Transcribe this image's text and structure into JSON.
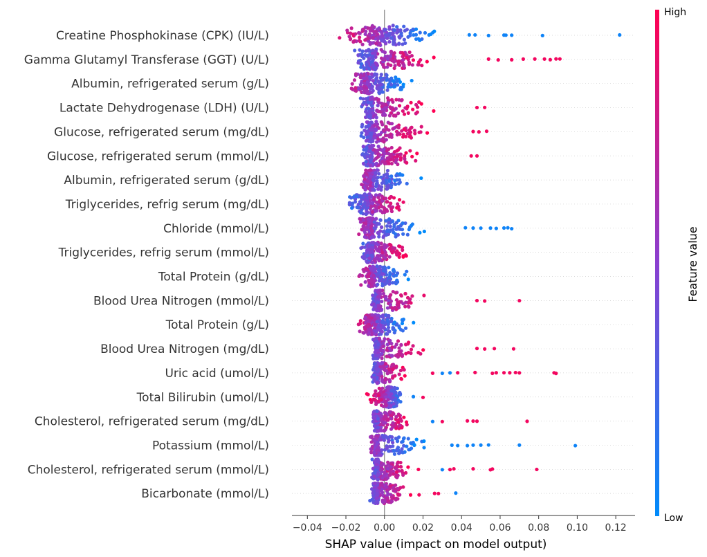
{
  "chart_data": {
    "type": "scatter",
    "subtype": "shap-beeswarm-summary",
    "title": "",
    "xlabel": "SHAP value (impact on model output)",
    "ylabel": "",
    "xlim": [
      -0.048,
      0.13
    ],
    "x_ticks": [
      -0.04,
      -0.02,
      0.0,
      0.02,
      0.04,
      0.06,
      0.08,
      0.1,
      0.12
    ],
    "x_tick_labels": [
      "−0.04",
      "−0.02",
      "0.00",
      "0.02",
      "0.04",
      "0.06",
      "0.08",
      "0.10",
      "0.12"
    ],
    "colorbar": {
      "title": "Feature value",
      "high_label": "High",
      "low_label": "Low",
      "low_color": "#008bfb",
      "mid_color": "#8a3fd0",
      "high_color": "#ff0052"
    },
    "features": [
      {
        "name": "Creatine Phosphokinase (CPK) (IU/L)",
        "min": -0.04,
        "max": 0.122,
        "center": -0.002,
        "spread_neg": 0.036,
        "spread_pos": 0.045,
        "high_side": "neg",
        "outliers": [
          [
            0.122,
            "low"
          ],
          [
            0.082,
            "low"
          ],
          [
            0.066,
            "low"
          ],
          [
            0.063,
            "low"
          ],
          [
            0.062,
            "low"
          ],
          [
            0.054,
            "low"
          ],
          [
            0.047,
            "low"
          ],
          [
            0.044,
            "low"
          ]
        ]
      },
      {
        "name": "Gamma Glutamyl Transferase (GGT) (U/L)",
        "min": -0.025,
        "max": 0.091,
        "center": -0.004,
        "spread_neg": 0.02,
        "spread_pos": 0.05,
        "high_side": "pos",
        "outliers": [
          [
            0.091,
            "high"
          ],
          [
            0.089,
            "high"
          ],
          [
            0.086,
            "high"
          ],
          [
            0.083,
            "high"
          ],
          [
            0.078,
            "high"
          ],
          [
            0.072,
            "high"
          ],
          [
            0.066,
            "high"
          ],
          [
            0.059,
            "high"
          ],
          [
            0.054,
            "high"
          ]
        ]
      },
      {
        "name": "Albumin, refrigerated serum (g/L)",
        "min": -0.023,
        "max": 0.031,
        "center": -0.008,
        "spread_neg": 0.015,
        "spread_pos": 0.035,
        "high_side": "neg",
        "outliers": []
      },
      {
        "name": "Lactate Dehydrogenase (LDH) (U/L)",
        "min": -0.016,
        "max": 0.052,
        "center": -0.006,
        "spread_neg": 0.01,
        "spread_pos": 0.045,
        "high_side": "pos",
        "outliers": [
          [
            0.052,
            "high"
          ],
          [
            0.048,
            "high"
          ]
        ]
      },
      {
        "name": "Glucose, refrigerated serum (mg/dL)",
        "min": -0.015,
        "max": 0.053,
        "center": -0.006,
        "spread_neg": 0.009,
        "spread_pos": 0.045,
        "high_side": "pos",
        "outliers": [
          [
            0.053,
            "high"
          ],
          [
            0.049,
            "high"
          ],
          [
            0.046,
            "high"
          ]
        ]
      },
      {
        "name": "Glucose, refrigerated serum (mmol/L)",
        "min": -0.016,
        "max": 0.048,
        "center": -0.006,
        "spread_neg": 0.01,
        "spread_pos": 0.043,
        "high_side": "pos",
        "outliers": [
          [
            0.048,
            "high"
          ],
          [
            0.045,
            "high"
          ]
        ]
      },
      {
        "name": "Albumin, refrigerated serum (g/dL)",
        "min": -0.015,
        "max": 0.032,
        "center": -0.006,
        "spread_neg": 0.009,
        "spread_pos": 0.035,
        "high_side": "neg",
        "outliers": []
      },
      {
        "name": "Triglycerides, refrig serum (mg/dL)",
        "min": -0.026,
        "max": 0.027,
        "center": -0.008,
        "spread_neg": 0.018,
        "spread_pos": 0.03,
        "high_side": "pos",
        "outliers": []
      },
      {
        "name": "Chloride (mmol/L)",
        "min": -0.017,
        "max": 0.066,
        "center": -0.006,
        "spread_neg": 0.011,
        "spread_pos": 0.04,
        "high_side": "neg",
        "outliers": [
          [
            0.066,
            "low"
          ],
          [
            0.064,
            "low"
          ],
          [
            0.062,
            "low"
          ],
          [
            0.058,
            "low"
          ],
          [
            0.055,
            "low"
          ],
          [
            0.05,
            "low"
          ],
          [
            0.046,
            "low"
          ],
          [
            0.042,
            "low"
          ]
        ]
      },
      {
        "name": "Triglycerides, refrig serum (mmol/L)",
        "min": -0.016,
        "max": 0.025,
        "center": -0.006,
        "spread_neg": 0.01,
        "spread_pos": 0.03,
        "high_side": "pos",
        "outliers": []
      },
      {
        "name": "Total Protein (g/dL)",
        "min": -0.018,
        "max": 0.033,
        "center": -0.005,
        "spread_neg": 0.012,
        "spread_pos": 0.03,
        "high_side": "neg",
        "outliers": []
      },
      {
        "name": "Blood Urea Nitrogen (mmol/L)",
        "min": -0.008,
        "max": 0.07,
        "center": -0.003,
        "spread_neg": 0.005,
        "spread_pos": 0.045,
        "high_side": "pos",
        "outliers": [
          [
            0.07,
            "high"
          ],
          [
            0.052,
            "high"
          ],
          [
            0.048,
            "high"
          ]
        ]
      },
      {
        "name": "Total Protein (g/L)",
        "min": -0.021,
        "max": 0.025,
        "center": -0.004,
        "spread_neg": 0.016,
        "spread_pos": 0.028,
        "high_side": "neg",
        "outliers": []
      },
      {
        "name": "Blood Urea Nitrogen (mg/dL)",
        "min": -0.009,
        "max": 0.067,
        "center": -0.003,
        "spread_neg": 0.005,
        "spread_pos": 0.04,
        "high_side": "pos",
        "outliers": [
          [
            0.067,
            "high"
          ],
          [
            0.057,
            "high"
          ],
          [
            0.052,
            "high"
          ],
          [
            0.048,
            "high"
          ]
        ]
      },
      {
        "name": "Uric acid (umol/L)",
        "min": -0.008,
        "max": 0.089,
        "center": -0.003,
        "spread_neg": 0.005,
        "spread_pos": 0.025,
        "high_side": "pos",
        "outliers": [
          [
            0.089,
            "high"
          ],
          [
            0.088,
            "high"
          ],
          [
            0.07,
            "high"
          ],
          [
            0.068,
            "high"
          ],
          [
            0.065,
            "high"
          ],
          [
            0.062,
            "high"
          ],
          [
            0.058,
            "high"
          ],
          [
            0.056,
            "high"
          ],
          [
            0.047,
            "high"
          ],
          [
            0.038,
            "high"
          ],
          [
            0.034,
            "low"
          ],
          [
            0.03,
            "low"
          ],
          [
            0.025,
            "high"
          ]
        ]
      },
      {
        "name": "Total Bilirubin (umol/L)",
        "min": -0.019,
        "max": 0.02,
        "center": 0.002,
        "spread_neg": 0.016,
        "spread_pos": 0.012,
        "high_side": "neg",
        "outliers": [
          [
            0.02,
            "high"
          ],
          [
            0.015,
            "low"
          ]
        ]
      },
      {
        "name": "Cholesterol, refrigerated serum (mg/dL)",
        "min": -0.01,
        "max": 0.074,
        "center": -0.003,
        "spread_neg": 0.006,
        "spread_pos": 0.028,
        "high_side": "pos",
        "outliers": [
          [
            0.074,
            "high"
          ],
          [
            0.048,
            "high"
          ],
          [
            0.046,
            "high"
          ],
          [
            0.043,
            "high"
          ],
          [
            0.03,
            "high"
          ],
          [
            0.025,
            "low"
          ]
        ]
      },
      {
        "name": "Potassium (mmol/L)",
        "min": -0.011,
        "max": 0.099,
        "center": -0.003,
        "spread_neg": 0.007,
        "spread_pos": 0.04,
        "high_side": "neg",
        "outliers": [
          [
            0.099,
            "low"
          ],
          [
            0.07,
            "low"
          ],
          [
            0.054,
            "low"
          ],
          [
            0.05,
            "low"
          ],
          [
            0.046,
            "low"
          ],
          [
            0.043,
            "low"
          ],
          [
            0.038,
            "low"
          ],
          [
            0.035,
            "low"
          ]
        ]
      },
      {
        "name": "Cholesterol, refrigerated serum (mmol/L)",
        "min": -0.01,
        "max": 0.079,
        "center": -0.003,
        "spread_neg": 0.006,
        "spread_pos": 0.03,
        "high_side": "pos",
        "outliers": [
          [
            0.079,
            "high"
          ],
          [
            0.056,
            "high"
          ],
          [
            0.055,
            "high"
          ],
          [
            0.046,
            "high"
          ],
          [
            0.036,
            "high"
          ],
          [
            0.034,
            "high"
          ],
          [
            0.03,
            "low"
          ]
        ]
      },
      {
        "name": "Bicarbonate (mmol/L)",
        "min": -0.01,
        "max": 0.037,
        "center": -0.003,
        "spread_neg": 0.006,
        "spread_pos": 0.028,
        "high_side": "pos",
        "outliers": [
          [
            0.037,
            "low"
          ],
          [
            0.028,
            "high"
          ],
          [
            0.026,
            "high"
          ]
        ]
      }
    ]
  }
}
